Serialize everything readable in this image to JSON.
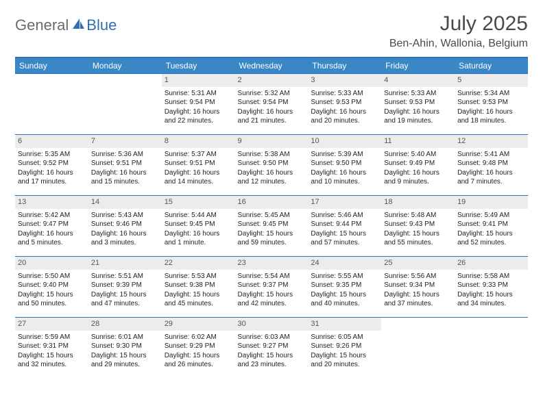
{
  "brand": {
    "word1": "General",
    "word2": "Blue"
  },
  "title": "July 2025",
  "location": "Ben-Ahin, Wallonia, Belgium",
  "colors": {
    "header_bg": "#3a87c8",
    "header_text": "#ffffff",
    "rule": "#2f6fb3",
    "daynum_bg": "#ececec",
    "logo_gray": "#6b6b6b",
    "logo_blue": "#2f6fb3",
    "text": "#222222",
    "title_color": "#4a4a4a"
  },
  "day_headers": [
    "Sunday",
    "Monday",
    "Tuesday",
    "Wednesday",
    "Thursday",
    "Friday",
    "Saturday"
  ],
  "weeks": [
    [
      {
        "n": "",
        "sunrise": "",
        "sunset": "",
        "daylight": ""
      },
      {
        "n": "",
        "sunrise": "",
        "sunset": "",
        "daylight": ""
      },
      {
        "n": "1",
        "sunrise": "Sunrise: 5:31 AM",
        "sunset": "Sunset: 9:54 PM",
        "daylight": "Daylight: 16 hours and 22 minutes."
      },
      {
        "n": "2",
        "sunrise": "Sunrise: 5:32 AM",
        "sunset": "Sunset: 9:54 PM",
        "daylight": "Daylight: 16 hours and 21 minutes."
      },
      {
        "n": "3",
        "sunrise": "Sunrise: 5:33 AM",
        "sunset": "Sunset: 9:53 PM",
        "daylight": "Daylight: 16 hours and 20 minutes."
      },
      {
        "n": "4",
        "sunrise": "Sunrise: 5:33 AM",
        "sunset": "Sunset: 9:53 PM",
        "daylight": "Daylight: 16 hours and 19 minutes."
      },
      {
        "n": "5",
        "sunrise": "Sunrise: 5:34 AM",
        "sunset": "Sunset: 9:53 PM",
        "daylight": "Daylight: 16 hours and 18 minutes."
      }
    ],
    [
      {
        "n": "6",
        "sunrise": "Sunrise: 5:35 AM",
        "sunset": "Sunset: 9:52 PM",
        "daylight": "Daylight: 16 hours and 17 minutes."
      },
      {
        "n": "7",
        "sunrise": "Sunrise: 5:36 AM",
        "sunset": "Sunset: 9:51 PM",
        "daylight": "Daylight: 16 hours and 15 minutes."
      },
      {
        "n": "8",
        "sunrise": "Sunrise: 5:37 AM",
        "sunset": "Sunset: 9:51 PM",
        "daylight": "Daylight: 16 hours and 14 minutes."
      },
      {
        "n": "9",
        "sunrise": "Sunrise: 5:38 AM",
        "sunset": "Sunset: 9:50 PM",
        "daylight": "Daylight: 16 hours and 12 minutes."
      },
      {
        "n": "10",
        "sunrise": "Sunrise: 5:39 AM",
        "sunset": "Sunset: 9:50 PM",
        "daylight": "Daylight: 16 hours and 10 minutes."
      },
      {
        "n": "11",
        "sunrise": "Sunrise: 5:40 AM",
        "sunset": "Sunset: 9:49 PM",
        "daylight": "Daylight: 16 hours and 9 minutes."
      },
      {
        "n": "12",
        "sunrise": "Sunrise: 5:41 AM",
        "sunset": "Sunset: 9:48 PM",
        "daylight": "Daylight: 16 hours and 7 minutes."
      }
    ],
    [
      {
        "n": "13",
        "sunrise": "Sunrise: 5:42 AM",
        "sunset": "Sunset: 9:47 PM",
        "daylight": "Daylight: 16 hours and 5 minutes."
      },
      {
        "n": "14",
        "sunrise": "Sunrise: 5:43 AM",
        "sunset": "Sunset: 9:46 PM",
        "daylight": "Daylight: 16 hours and 3 minutes."
      },
      {
        "n": "15",
        "sunrise": "Sunrise: 5:44 AM",
        "sunset": "Sunset: 9:45 PM",
        "daylight": "Daylight: 16 hours and 1 minute."
      },
      {
        "n": "16",
        "sunrise": "Sunrise: 5:45 AM",
        "sunset": "Sunset: 9:45 PM",
        "daylight": "Daylight: 15 hours and 59 minutes."
      },
      {
        "n": "17",
        "sunrise": "Sunrise: 5:46 AM",
        "sunset": "Sunset: 9:44 PM",
        "daylight": "Daylight: 15 hours and 57 minutes."
      },
      {
        "n": "18",
        "sunrise": "Sunrise: 5:48 AM",
        "sunset": "Sunset: 9:43 PM",
        "daylight": "Daylight: 15 hours and 55 minutes."
      },
      {
        "n": "19",
        "sunrise": "Sunrise: 5:49 AM",
        "sunset": "Sunset: 9:41 PM",
        "daylight": "Daylight: 15 hours and 52 minutes."
      }
    ],
    [
      {
        "n": "20",
        "sunrise": "Sunrise: 5:50 AM",
        "sunset": "Sunset: 9:40 PM",
        "daylight": "Daylight: 15 hours and 50 minutes."
      },
      {
        "n": "21",
        "sunrise": "Sunrise: 5:51 AM",
        "sunset": "Sunset: 9:39 PM",
        "daylight": "Daylight: 15 hours and 47 minutes."
      },
      {
        "n": "22",
        "sunrise": "Sunrise: 5:53 AM",
        "sunset": "Sunset: 9:38 PM",
        "daylight": "Daylight: 15 hours and 45 minutes."
      },
      {
        "n": "23",
        "sunrise": "Sunrise: 5:54 AM",
        "sunset": "Sunset: 9:37 PM",
        "daylight": "Daylight: 15 hours and 42 minutes."
      },
      {
        "n": "24",
        "sunrise": "Sunrise: 5:55 AM",
        "sunset": "Sunset: 9:35 PM",
        "daylight": "Daylight: 15 hours and 40 minutes."
      },
      {
        "n": "25",
        "sunrise": "Sunrise: 5:56 AM",
        "sunset": "Sunset: 9:34 PM",
        "daylight": "Daylight: 15 hours and 37 minutes."
      },
      {
        "n": "26",
        "sunrise": "Sunrise: 5:58 AM",
        "sunset": "Sunset: 9:33 PM",
        "daylight": "Daylight: 15 hours and 34 minutes."
      }
    ],
    [
      {
        "n": "27",
        "sunrise": "Sunrise: 5:59 AM",
        "sunset": "Sunset: 9:31 PM",
        "daylight": "Daylight: 15 hours and 32 minutes."
      },
      {
        "n": "28",
        "sunrise": "Sunrise: 6:01 AM",
        "sunset": "Sunset: 9:30 PM",
        "daylight": "Daylight: 15 hours and 29 minutes."
      },
      {
        "n": "29",
        "sunrise": "Sunrise: 6:02 AM",
        "sunset": "Sunset: 9:29 PM",
        "daylight": "Daylight: 15 hours and 26 minutes."
      },
      {
        "n": "30",
        "sunrise": "Sunrise: 6:03 AM",
        "sunset": "Sunset: 9:27 PM",
        "daylight": "Daylight: 15 hours and 23 minutes."
      },
      {
        "n": "31",
        "sunrise": "Sunrise: 6:05 AM",
        "sunset": "Sunset: 9:26 PM",
        "daylight": "Daylight: 15 hours and 20 minutes."
      },
      {
        "n": "",
        "sunrise": "",
        "sunset": "",
        "daylight": ""
      },
      {
        "n": "",
        "sunrise": "",
        "sunset": "",
        "daylight": ""
      }
    ]
  ]
}
